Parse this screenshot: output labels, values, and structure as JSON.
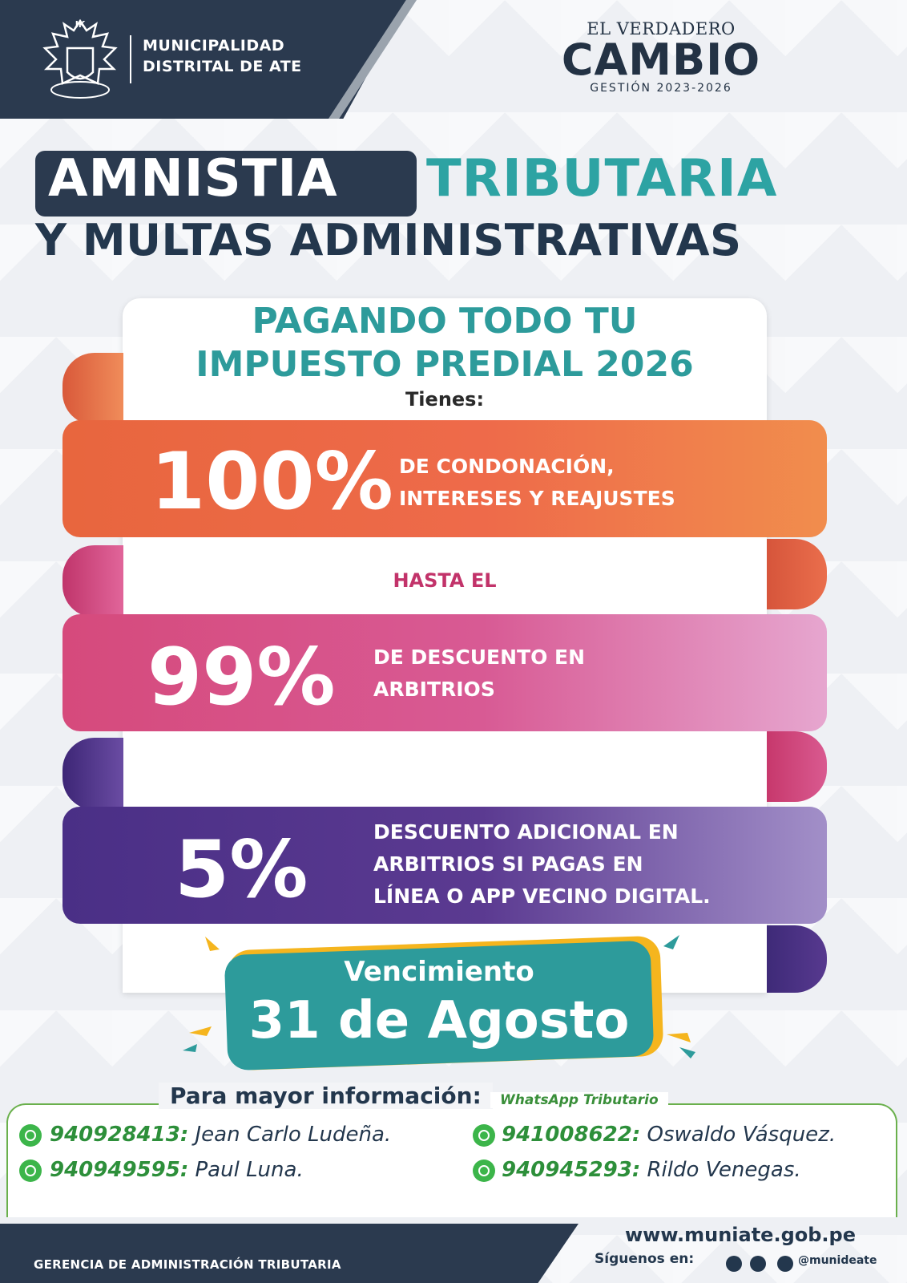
{
  "header": {
    "municipality_line1": "MUNICIPALIDAD",
    "municipality_line2": "DISTRITAL DE ATE",
    "crest_motto": "IK",
    "brand_kicker": "EL VERDADERO",
    "brand_main": "CAMBIO",
    "brand_sub": "GESTIÓN 2023-2026"
  },
  "title": {
    "word1": "AMNISTIA",
    "word2": "TRIBUTARIA",
    "line2": "Y MULTAS ADMINISTRATIVAS"
  },
  "card": {
    "heading_line1": "PAGANDO TODO TU",
    "heading_line2": "IMPUESTO PREDIAL 2026",
    "tienes": "Tienes:",
    "hasta": "HASTA EL"
  },
  "benefits": [
    {
      "percent": "100%",
      "line1": "DE CONDONACIÓN,",
      "line2": "INTERESES Y REAJUSTES",
      "line3": "",
      "color": "#ee6a4a"
    },
    {
      "percent": "99%",
      "line1": "DE DESCUENTO EN",
      "line2": "ARBITRIOS",
      "line3": "",
      "color": "#d85a94"
    },
    {
      "percent": "5%",
      "line1": "DESCUENTO ADICIONAL EN",
      "line2": "ARBITRIOS SI PAGAS EN",
      "line3": "LÍNEA O APP VECINO DIGITAL.",
      "color": "#5b3a91"
    }
  ],
  "deadline": {
    "label": "Vencimiento",
    "date": "31 de Agosto"
  },
  "contact": {
    "title": "Para mayor información:",
    "whatsapp_label": "WhatsApp Tributario",
    "entries": [
      {
        "number": "940928413:",
        "name": "Jean Carlo Ludeña."
      },
      {
        "number": "941008622:",
        "name": "Oswaldo Vásquez."
      },
      {
        "number": "940949595:",
        "name": "Paul Luna."
      },
      {
        "number": "940945293:",
        "name": "Rildo Venegas."
      }
    ]
  },
  "footer": {
    "department": "GERENCIA DE ADMINISTRACIÓN TRIBUTARIA",
    "website": "www.muniate.gob.pe",
    "follow": "Síguenos en:",
    "handle": "@munideate",
    "icons": [
      "facebook-icon",
      "instagram-icon",
      "tiktok-icon"
    ]
  },
  "colors": {
    "navy": "#2b3a4f",
    "teal": "#2d9b9b",
    "orange": "#ee6a4a",
    "pink": "#d85a94",
    "purple": "#5b3a91",
    "gold": "#f5b51e",
    "green": "#3cb54a"
  }
}
